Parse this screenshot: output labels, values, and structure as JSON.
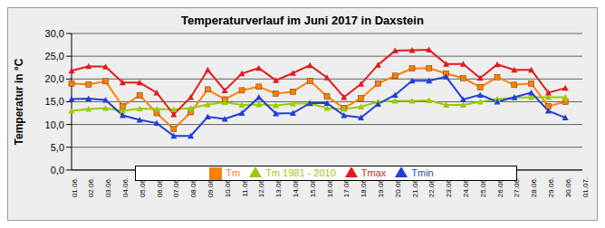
{
  "chart_data": {
    "type": "line",
    "title": "Temperaturverlauf im Juni 2017 in Daxstein",
    "y_label": "Temperatur in °C",
    "categories": [
      "01.06.",
      "02.06.",
      "03.06.",
      "04.06.",
      "05.06.",
      "06.06.",
      "07.06.",
      "08.06.",
      "09.06.",
      "10.06.",
      "11.06.",
      "12.06.",
      "13.06.",
      "14.06.",
      "15.06.",
      "16.06.",
      "17.06.",
      "18.06.",
      "19.06.",
      "20.06.",
      "21.06.",
      "22.06.",
      "23.06.",
      "24.06.",
      "25.06.",
      "26.06.",
      "27.06.",
      "28.06.",
      "29.06.",
      "30.06.",
      "01.07."
    ],
    "series": [
      {
        "name": "Tm",
        "color": "#ff8000",
        "marker": "square",
        "values": [
          19.0,
          18.8,
          19.5,
          14.0,
          16.4,
          12.5,
          9.0,
          12.7,
          17.7,
          15.5,
          17.5,
          18.3,
          16.8,
          17.2,
          19.6,
          16.2,
          13.6,
          15.8,
          19.0,
          20.7,
          22.3,
          22.4,
          21.2,
          20.2,
          18.2,
          20.4,
          18.7,
          19.0,
          14.0,
          15.0,
          null
        ]
      },
      {
        "name": "Tm 1981 - 2010",
        "color": "#99cc00",
        "marker": "triangle",
        "values": [
          13.0,
          13.4,
          13.6,
          13.0,
          13.5,
          13.4,
          13.3,
          13.6,
          14.4,
          14.9,
          14.3,
          14.4,
          14.2,
          14.6,
          14.6,
          13.6,
          13.4,
          13.9,
          15.0,
          15.2,
          15.2,
          15.3,
          14.3,
          14.3,
          15.0,
          15.6,
          15.9,
          16.0,
          16.0,
          16.0,
          null
        ]
      },
      {
        "name": "Tmax",
        "color": "#e31a1c",
        "marker": "triangle",
        "values": [
          21.8,
          22.8,
          22.7,
          19.2,
          19.2,
          17.0,
          12.2,
          16.0,
          22.0,
          17.5,
          21.2,
          22.4,
          19.7,
          21.3,
          23.0,
          20.3,
          16.0,
          18.9,
          23.1,
          26.2,
          26.3,
          26.4,
          23.3,
          23.3,
          20.2,
          23.2,
          22.0,
          22.0,
          17.0,
          18.0,
          null
        ]
      },
      {
        "name": "Tmin",
        "color": "#1f3fd6",
        "marker": "triangle",
        "values": [
          15.6,
          15.7,
          15.4,
          12.0,
          11.0,
          10.3,
          7.5,
          7.5,
          11.7,
          11.2,
          12.5,
          16.0,
          12.4,
          12.5,
          14.7,
          14.7,
          12.0,
          11.5,
          14.5,
          16.5,
          19.6,
          19.6,
          20.5,
          15.5,
          16.5,
          15.0,
          16.0,
          17.0,
          13.0,
          11.5,
          null
        ]
      }
    ],
    "ylim": [
      0,
      30
    ],
    "yticks": [
      {
        "value": 0,
        "label": "0,0"
      },
      {
        "value": 5,
        "label": "5,0"
      },
      {
        "value": 10,
        "label": "10,0"
      },
      {
        "value": 15,
        "label": "15,0"
      },
      {
        "value": 20,
        "label": "20,0"
      },
      {
        "value": 25,
        "label": "25,0"
      },
      {
        "value": 30,
        "label": "30,0"
      }
    ],
    "grid": true,
    "legend": "bottom"
  }
}
